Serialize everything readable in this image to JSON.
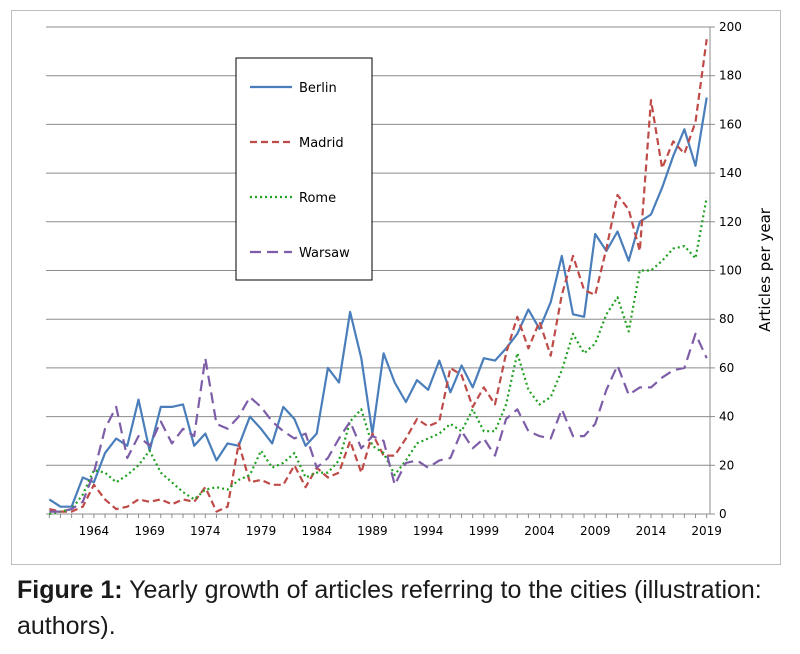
{
  "caption": {
    "label": "Figure 1:",
    "text": " Yearly growth of articles referring to the cities (illustration: authors)."
  },
  "chart_data": {
    "type": "line",
    "ylabel": "Articles per year",
    "ylim": [
      0,
      200
    ],
    "yticks": [
      0,
      20,
      40,
      60,
      80,
      100,
      120,
      140,
      160,
      180,
      200
    ],
    "xlim": [
      1959.7,
      2019.3
    ],
    "xticks": [
      1964,
      1969,
      1974,
      1979,
      1984,
      1989,
      1994,
      1999,
      2004,
      2009,
      2014,
      2019
    ],
    "y_axis_side": "right",
    "grid": "horizontal",
    "legend_position": "top-left",
    "x": [
      1960,
      1961,
      1962,
      1963,
      1964,
      1965,
      1966,
      1967,
      1968,
      1969,
      1970,
      1971,
      1972,
      1973,
      1974,
      1975,
      1976,
      1977,
      1978,
      1979,
      1980,
      1981,
      1982,
      1983,
      1984,
      1985,
      1986,
      1987,
      1988,
      1989,
      1990,
      1991,
      1992,
      1993,
      1994,
      1995,
      1996,
      1997,
      1998,
      1999,
      2000,
      2001,
      2002,
      2003,
      2004,
      2005,
      2006,
      2007,
      2008,
      2009,
      2010,
      2011,
      2012,
      2013,
      2014,
      2015,
      2016,
      2017,
      2018,
      2019
    ],
    "series": [
      {
        "name": "Berlin",
        "color": "#4a7ebb",
        "dash": "solid",
        "values": [
          6,
          3,
          3,
          15,
          13,
          25,
          31,
          28,
          47,
          26,
          44,
          44,
          45,
          28,
          33,
          22,
          29,
          28,
          40,
          35,
          29,
          44,
          39,
          28,
          33,
          60,
          54,
          83,
          64,
          33,
          66,
          54,
          46,
          55,
          51,
          63,
          50,
          61,
          52,
          64,
          63,
          68,
          74,
          84,
          76,
          87,
          106,
          82,
          81,
          115,
          108,
          116,
          104,
          120,
          123,
          134,
          147,
          158,
          143,
          171
        ]
      },
      {
        "name": "Madrid",
        "color": "#be4b48",
        "dash": "dashed",
        "values": [
          2,
          1,
          1,
          3,
          12,
          6,
          2,
          3,
          6,
          5,
          6,
          4,
          6,
          5,
          11,
          1,
          3,
          29,
          13,
          14,
          12,
          12,
          20,
          11,
          19,
          15,
          17,
          30,
          17,
          33,
          24,
          24,
          31,
          39,
          36,
          38,
          60,
          57,
          44,
          52,
          45,
          66,
          81,
          68,
          79,
          65,
          90,
          106,
          92,
          90,
          109,
          131,
          125,
          108,
          170,
          142,
          153,
          148,
          161,
          195
        ]
      },
      {
        "name": "Rome",
        "color": "#21a021",
        "dash": "dotted",
        "values": [
          0,
          1,
          2,
          8,
          18,
          17,
          13,
          16,
          20,
          26,
          17,
          13,
          9,
          6,
          10,
          11,
          10,
          14,
          16,
          26,
          19,
          21,
          25,
          15,
          17,
          17,
          22,
          38,
          43,
          28,
          25,
          16,
          22,
          29,
          31,
          33,
          37,
          34,
          43,
          34,
          34,
          45,
          66,
          51,
          45,
          48,
          59,
          74,
          66,
          70,
          82,
          89,
          75,
          100,
          100,
          104,
          109,
          110,
          105,
          130
        ]
      },
      {
        "name": "Warsaw",
        "color": "#7e5da8",
        "dash": "longdash",
        "values": [
          1,
          1,
          2,
          5,
          17,
          35,
          44,
          23,
          32,
          28,
          38,
          29,
          35,
          32,
          64,
          37,
          35,
          40,
          48,
          44,
          38,
          34,
          31,
          33,
          19,
          23,
          31,
          38,
          27,
          32,
          30,
          12,
          21,
          22,
          19,
          22,
          23,
          34,
          27,
          31,
          24,
          39,
          43,
          34,
          32,
          31,
          43,
          32,
          32,
          37,
          51,
          61,
          49,
          52,
          52,
          56,
          59,
          60,
          74,
          64
        ]
      }
    ]
  }
}
